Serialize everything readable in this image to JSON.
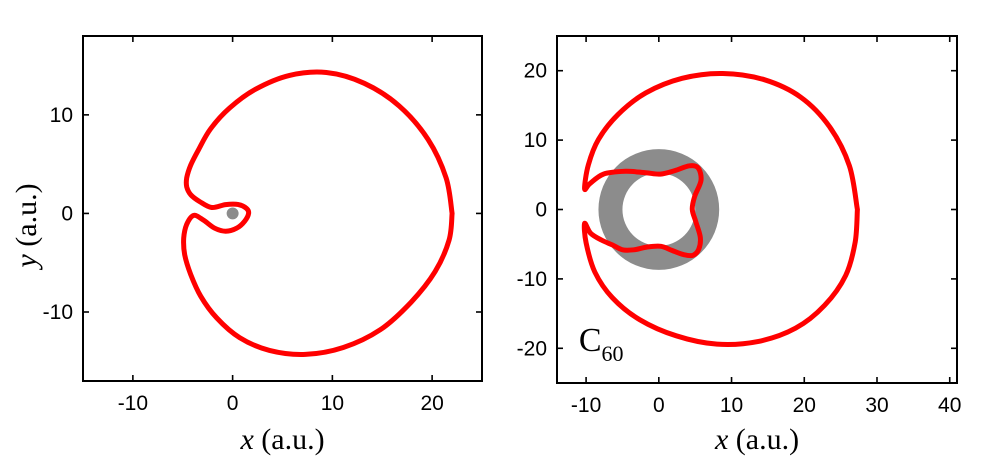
{
  "chart_data": [
    {
      "type": "line",
      "title": "",
      "xlabel": {
        "var": "x",
        "unit": "(a.u.)"
      },
      "ylabel": {
        "var": "y",
        "unit": "(a.u.)"
      },
      "xlim": [
        -15,
        25
      ],
      "ylim": [
        -17,
        18
      ],
      "xticks": [
        -10,
        0,
        10,
        20
      ],
      "yticks": [
        -10,
        0,
        10
      ],
      "xtick_labels": [
        "-10",
        "0",
        "10",
        "20"
      ],
      "ytick_labels": [
        "-10",
        "0",
        "10"
      ],
      "grid": false,
      "colors": {
        "trajectory": "#ff0000",
        "core": "#8c8c8c"
      },
      "core_marker": {
        "x": 0,
        "y": 0,
        "radius": 0.6
      },
      "series": [
        {
          "x": [
            22,
            21.4,
            19.6,
            16.7,
            13.2,
            9.4,
            5.7,
            2.3,
            -0.3,
            -2.2,
            -3.4,
            -4.2,
            -4.6,
            -4.6,
            -4.2,
            -3.3,
            -2.1,
            -0.7,
            0.6,
            1.4,
            1.6,
            1.2,
            0.4,
            -0.7,
            -1.8,
            -2.9,
            -3.9,
            -4.6,
            -4.9,
            -4.8,
            -4.2,
            -3.2,
            -1.6,
            0.7,
            3.7,
            7.3,
            11.1,
            14.8,
            17.9,
            20.3,
            21.7,
            22
          ],
          "y": [
            0,
            3.6,
            7.5,
            10.9,
            13.2,
            14.3,
            14.0,
            12.6,
            10.7,
            8.6,
            6.5,
            4.9,
            3.6,
            2.7,
            1.9,
            1.2,
            0.6,
            0.9,
            0.9,
            0.5,
            0,
            -0.8,
            -1.5,
            -1.8,
            -1.5,
            -0.7,
            -0.2,
            -1.1,
            -2.5,
            -4.2,
            -6.2,
            -8.4,
            -10.6,
            -12.6,
            -13.9,
            -14.3,
            -13.6,
            -11.8,
            -9.0,
            -5.9,
            -2.7,
            0
          ]
        }
      ]
    },
    {
      "type": "line",
      "title": "",
      "annotation": {
        "base": "C",
        "subscript": "60"
      },
      "xlabel": {
        "var": "x",
        "unit": "(a.u.)"
      },
      "ylabel": {
        "var": "",
        "unit": ""
      },
      "xlim": [
        -14,
        41
      ],
      "ylim": [
        -25,
        25
      ],
      "xticks": [
        -10,
        0,
        10,
        20,
        30,
        40
      ],
      "yticks": [
        -20,
        -10,
        0,
        10,
        20
      ],
      "xtick_labels": [
        "-10",
        "0",
        "10",
        "20",
        "30",
        "40"
      ],
      "ytick_labels": [
        "-20",
        "-10",
        "0",
        "10",
        "20"
      ],
      "grid": false,
      "colors": {
        "trajectory": "#ff0000",
        "shell": "#8c8c8c"
      },
      "shell": {
        "x": 0,
        "y": 0,
        "inner_radius": 5.0,
        "outer_radius": 8.3
      },
      "series": [
        {
          "x": [
            27.3,
            26.2,
            23.5,
            19.5,
            14.5,
            8.8,
            3.2,
            -1.8,
            -5.6,
            -8.3,
            -9.7,
            -10.2,
            -9.5,
            -7.6,
            -4.6,
            -1.8,
            0.2,
            2.2,
            4.2,
            5.4,
            5.8,
            4.9,
            4.6,
            5.1,
            5.7,
            5.5,
            4.7,
            3.4,
            1.8,
            0.3,
            -1.6,
            -3.4,
            -5.0,
            -6.4,
            -7.9,
            -9.4,
            -10.2,
            -10.0,
            -8.8,
            -6.4,
            -2.6,
            2.4,
            8.0,
            13.7,
            18.8,
            22.8,
            25.7,
            27.0,
            27.3
          ],
          "y": [
            0,
            6.3,
            11.9,
            16.2,
            18.7,
            19.6,
            18.9,
            16.8,
            13.7,
            10.1,
            6.4,
            3.0,
            3.7,
            5.1,
            5.5,
            5.3,
            5.1,
            5.6,
            6.3,
            6.0,
            4.2,
            1.8,
            0,
            -1.8,
            -4.0,
            -5.7,
            -6.6,
            -6.5,
            -5.9,
            -5.3,
            -5.4,
            -5.8,
            -5.8,
            -5.1,
            -4.4,
            -3.4,
            -2.0,
            -4.8,
            -9.0,
            -12.7,
            -15.9,
            -18.2,
            -19.4,
            -19.0,
            -17.1,
            -13.8,
            -9.5,
            -4.7,
            0
          ]
        }
      ]
    }
  ]
}
